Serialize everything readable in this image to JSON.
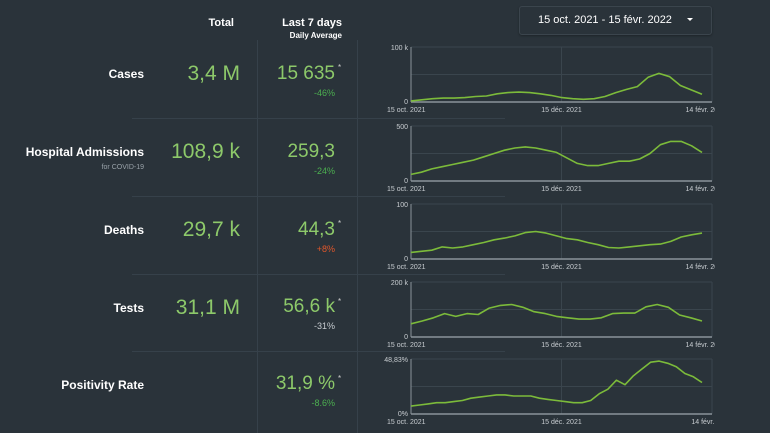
{
  "date_range": {
    "label": "15 oct. 2021 - 15 févr. 2022"
  },
  "headers": {
    "total": "Total",
    "last7": "Last 7 days",
    "last7_sub": "Daily Average"
  },
  "colors": {
    "value_green": "#8dc96a",
    "line_green": "#7cbb3a",
    "change_green": "#4caf50",
    "change_red": "#e2572b",
    "change_neutral": "#c8cdd1"
  },
  "rows": [
    {
      "label": "Cases",
      "sublabel": "",
      "total": "3,4 M",
      "avg": "15 635",
      "asterisk": "*",
      "change": "-46%",
      "change_color": "#4caf50"
    },
    {
      "label": "Hospital Admissions",
      "sublabel": "for COVID-19",
      "total": "108,9 k",
      "avg": "259,3",
      "asterisk": "",
      "change": "-24%",
      "change_color": "#4caf50"
    },
    {
      "label": "Deaths",
      "sublabel": "",
      "total": "29,7 k",
      "avg": "44,3",
      "asterisk": "*",
      "change": "+8%",
      "change_color": "#e2572b"
    },
    {
      "label": "Tests",
      "sublabel": "",
      "total": "31,1 M",
      "avg": "56,6 k",
      "asterisk": "*",
      "change": "-31%",
      "change_color": "#c8cdd1"
    },
    {
      "label": "Positivity Rate",
      "sublabel": "",
      "total": "",
      "avg": "31,9 %",
      "asterisk": "*",
      "change": "-8.6%",
      "change_color": "#4caf50"
    }
  ],
  "chart_data": [
    {
      "type": "line",
      "title": "Cases",
      "ymax_label": "100 k",
      "ymin_label": "0",
      "ylim": [
        0,
        100000
      ],
      "x_labels": [
        "15 oct. 2021",
        "15 déc. 2021",
        "14 févr. 2022"
      ],
      "values": [
        2000,
        4000,
        6000,
        7000,
        7000,
        8000,
        10000,
        11000,
        15000,
        17000,
        18000,
        17000,
        15000,
        12000,
        8000,
        6000,
        5000,
        6000,
        10000,
        17000,
        23000,
        28000,
        45000,
        52000,
        46000,
        30000,
        22000,
        14000
      ]
    },
    {
      "type": "line",
      "title": "Hospital Admissions",
      "ymax_label": "500",
      "ymin_label": "0",
      "ylim": [
        0,
        500
      ],
      "x_labels": [
        "15 oct. 2021",
        "15 déc. 2021",
        "14 févr. 2022"
      ],
      "values": [
        60,
        80,
        110,
        130,
        150,
        170,
        190,
        220,
        250,
        280,
        300,
        310,
        300,
        280,
        260,
        210,
        160,
        140,
        140,
        160,
        180,
        180,
        200,
        250,
        330,
        360,
        360,
        320,
        260
      ]
    },
    {
      "type": "line",
      "title": "Deaths",
      "ymax_label": "100",
      "ymin_label": "0",
      "ylim": [
        0,
        100
      ],
      "x_labels": [
        "15 oct. 2021",
        "15 déc. 2021",
        "14 févr. 2022"
      ],
      "values": [
        12,
        14,
        16,
        22,
        20,
        22,
        26,
        30,
        35,
        38,
        42,
        48,
        50,
        47,
        42,
        37,
        35,
        30,
        26,
        21,
        20,
        22,
        24,
        26,
        27,
        32,
        40,
        44,
        47
      ]
    },
    {
      "type": "line",
      "title": "Tests",
      "ymax_label": "200 k",
      "ymin_label": "0",
      "ylim": [
        0,
        200000
      ],
      "x_labels": [
        "15 oct. 2021",
        "15 déc. 2021",
        "14 févr. 2022"
      ],
      "values": [
        48000,
        58000,
        70000,
        85000,
        75000,
        85000,
        82000,
        105000,
        115000,
        118000,
        108000,
        92000,
        85000,
        75000,
        70000,
        65000,
        65000,
        70000,
        85000,
        87000,
        87000,
        110000,
        118000,
        108000,
        80000,
        70000,
        58000
      ]
    },
    {
      "type": "line",
      "title": "Positivity Rate",
      "ymax_label": "48,83%",
      "ymin_label": "0%",
      "ylim": [
        0,
        48.83
      ],
      "x_labels": [
        "15 oct. 2021",
        "15 déc. 2021",
        "14 févr. 2022"
      ],
      "values": [
        7,
        8,
        9,
        10,
        10,
        11,
        12,
        14,
        15,
        16,
        17,
        17,
        16,
        16,
        16,
        14,
        13,
        12,
        11,
        10,
        10,
        12,
        18,
        22,
        30,
        26,
        34,
        40,
        46,
        47,
        45,
        42,
        36,
        33,
        28
      ]
    }
  ]
}
